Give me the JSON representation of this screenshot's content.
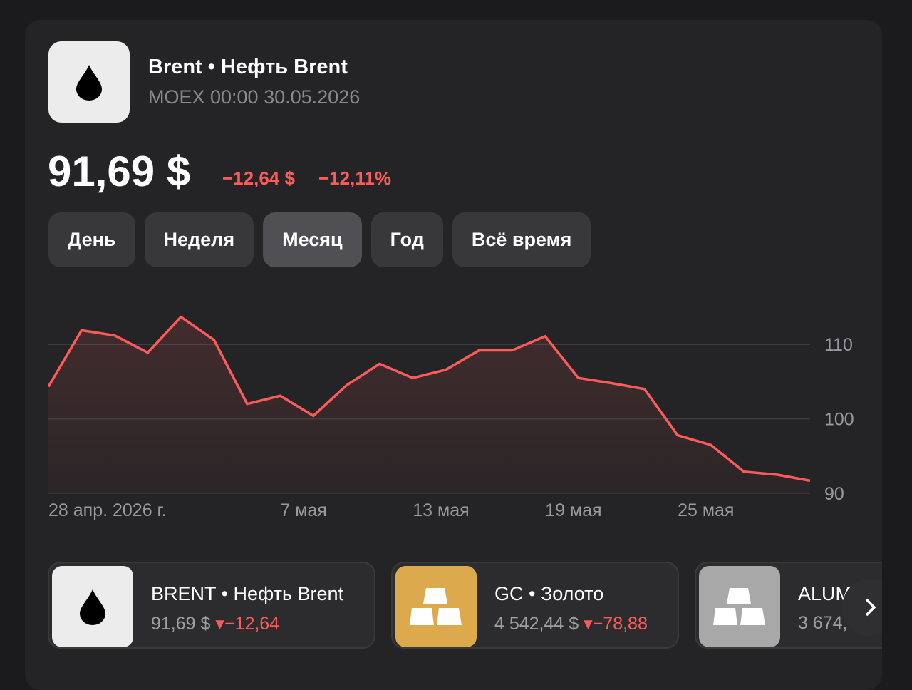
{
  "header": {
    "ticker": "Brent",
    "name": "Нефть Brent",
    "exchange": "MOEX 00:00 30.05.2026"
  },
  "quote": {
    "price": "91,69 $",
    "change": "−12,64 $",
    "change_percent": "−12,11%"
  },
  "tabs": [
    "День",
    "Неделя",
    "Месяц",
    "Год",
    "Всё время"
  ],
  "chart_data": {
    "type": "line",
    "categories": [
      "28 апр. 2026 г.",
      null,
      null,
      null,
      null,
      null,
      null,
      "7 мая",
      null,
      null,
      null,
      "13 мая",
      null,
      null,
      null,
      "19 мая",
      null,
      null,
      null,
      "25 мая",
      null,
      null,
      null,
      null
    ],
    "series": [
      {
        "name": "Brent",
        "color": "#ff5a5a",
        "values": [
          104.33,
          111.9,
          111.2,
          108.9,
          113.7,
          110.6,
          102.0,
          103.1,
          100.4,
          104.5,
          107.4,
          105.5,
          106.6,
          109.2,
          109.2,
          111.1,
          105.5,
          104.8,
          104.0,
          97.8,
          96.5,
          92.9,
          92.5,
          91.69
        ]
      }
    ],
    "ylim": [
      90,
      115
    ],
    "yticks": [
      90,
      100,
      110
    ],
    "grid": true
  },
  "cards": [
    {
      "title": "BRENT • Нефть Brent",
      "price": "91,69 $",
      "change": "−12,64"
    },
    {
      "title": "GC • Золото",
      "price": "4 542,44 $",
      "change": "−78,88"
    },
    {
      "title": "ALUM",
      "price": "3 674,"
    }
  ]
}
